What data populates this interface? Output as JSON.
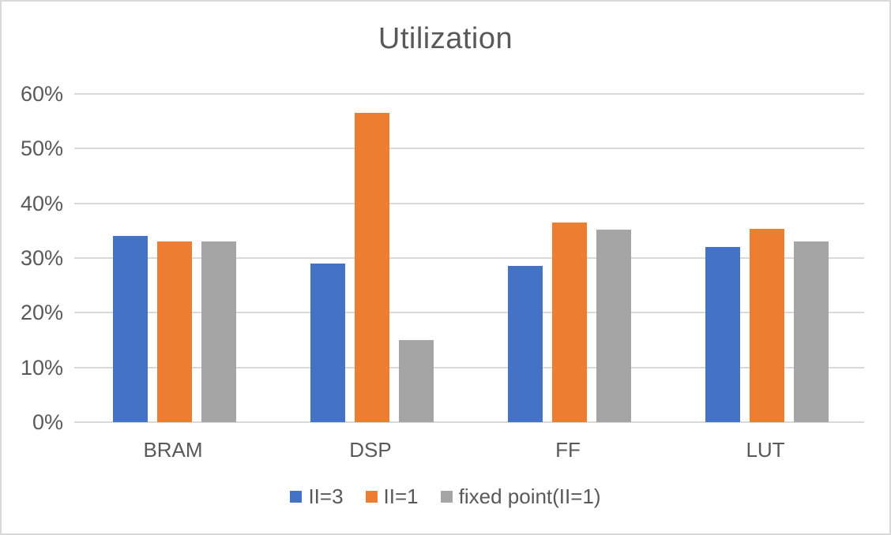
{
  "chart_data": {
    "type": "bar",
    "title": "Utilization",
    "categories": [
      "BRAM",
      "DSP",
      "FF",
      "LUT"
    ],
    "series": [
      {
        "name": "II=3",
        "color": "#4472C4",
        "values": [
          34,
          29,
          28.5,
          32
        ]
      },
      {
        "name": "II=1",
        "color": "#ED7D31",
        "values": [
          33,
          56.5,
          36.5,
          35.3
        ]
      },
      {
        "name": "fixed point(II=1)",
        "color": "#A5A5A5",
        "values": [
          33,
          15,
          35.2,
          33
        ]
      }
    ],
    "y_ticks": [
      "0%",
      "10%",
      "20%",
      "30%",
      "40%",
      "50%",
      "60%"
    ],
    "ylim": [
      0,
      60
    ],
    "grid": true,
    "legend_position": "bottom",
    "xlabel": "",
    "ylabel": "",
    "colors": {
      "text": "#595959",
      "gridline": "#D9D9D9",
      "frame_border": "#D9D9D9",
      "background": "#FFFFFF"
    }
  }
}
